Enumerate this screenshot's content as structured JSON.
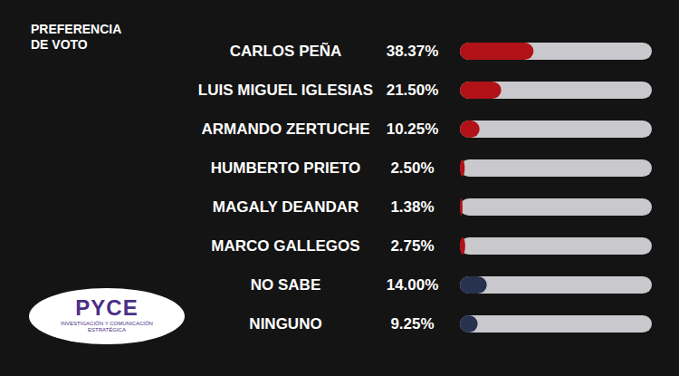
{
  "chart_data": {
    "type": "bar",
    "title": "PREFERENCIA DE VOTO",
    "annotations": [
      "PYCE",
      "INVESTIGACIÓN Y COMUNICACIÓN ESTRATÉGICA"
    ],
    "orientation": "horizontal",
    "categories": [
      "CARLOS PEÑA",
      "LUIS MIGUEL IGLESIAS",
      "ARMANDO ZERTUCHE",
      "HUMBERTO PRIETO",
      "MAGALY DEANDAR",
      "MARCO GALLEGOS",
      "NO SABE",
      "NINGUNO"
    ],
    "values": [
      38.37,
      21.5,
      10.25,
      2.5,
      1.38,
      2.75,
      14.0,
      9.25
    ],
    "value_labels": [
      "38.37%",
      "21.50%",
      "10.25%",
      "2.50%",
      "1.38%",
      "2.75%",
      "14.00%",
      "9.25%"
    ],
    "colors": [
      "#b01217",
      "#b01217",
      "#b01217",
      "#b01217",
      "#b01217",
      "#b01217",
      "#27324f",
      "#27324f"
    ],
    "data_labels": true,
    "xlim": [
      0,
      100
    ],
    "xticks": [],
    "tick_labels": false,
    "grid": false
  }
}
